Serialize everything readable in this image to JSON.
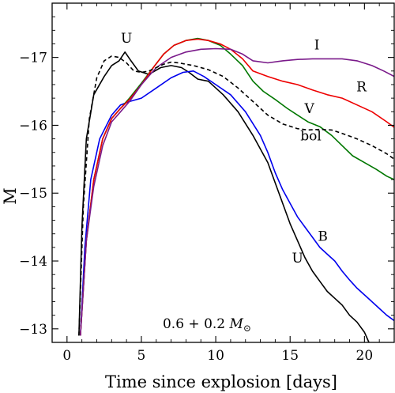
{
  "chart_data": {
    "type": "line",
    "xlabel": "Time since explosion [days]",
    "ylabel": "M",
    "xlim": [
      -1,
      22
    ],
    "ylim": [
      -12.8,
      -17.8
    ],
    "y_inverted": true,
    "x_ticks": [
      0,
      5,
      10,
      15,
      20
    ],
    "y_ticks": [
      -13,
      -14,
      -15,
      -16,
      -17
    ],
    "x_tick_labels": [
      "0",
      "5",
      "10",
      "15",
      "20"
    ],
    "y_tick_labels": [
      "−13",
      "−14",
      "−15",
      "−16",
      "−17"
    ],
    "annotation": "0.6 + 0.2 M⊙",
    "series": [
      {
        "name": "U",
        "color": "#000000",
        "dash": "solid",
        "x": [
          0.8,
          1.0,
          1.3,
          1.8,
          2.5,
          3.0,
          3.5,
          3.9,
          4.3,
          4.8,
          5.5,
          6.3,
          7.0,
          7.7,
          8.2,
          8.8,
          9.5,
          10.5,
          11.5,
          12.5,
          13.5,
          14.0,
          14.5,
          15.0,
          15.5,
          16.0,
          16.5,
          17.0,
          17.5,
          18.0,
          18.5,
          19.0,
          19.5,
          20.0,
          20.3
        ],
        "y": [
          -12.9,
          -14.5,
          -15.8,
          -16.45,
          -16.72,
          -16.88,
          -16.95,
          -17.08,
          -16.95,
          -16.8,
          -16.75,
          -16.85,
          -16.88,
          -16.85,
          -16.78,
          -16.68,
          -16.65,
          -16.45,
          -16.2,
          -15.85,
          -15.45,
          -15.15,
          -14.85,
          -14.55,
          -14.3,
          -14.05,
          -13.85,
          -13.7,
          -13.55,
          -13.45,
          -13.35,
          -13.2,
          -13.1,
          -12.95,
          -12.8
        ]
      },
      {
        "name": "B",
        "color": "#0000ee",
        "dash": "solid",
        "x": [
          0.9,
          1.2,
          1.6,
          2.2,
          3.0,
          3.6,
          4.2,
          5.0,
          6.0,
          7.0,
          7.8,
          8.5,
          9.2,
          10.0,
          11.0,
          12.0,
          13.0,
          13.5,
          14.0,
          14.5,
          15.0,
          15.5,
          16.0,
          16.5,
          17.0,
          17.5,
          18.0,
          18.5,
          19.0,
          19.5,
          20.0,
          20.5,
          21.0,
          21.5,
          22.0
        ],
        "y": [
          -12.9,
          -14.2,
          -15.2,
          -15.8,
          -16.15,
          -16.3,
          -16.35,
          -16.4,
          -16.55,
          -16.7,
          -16.78,
          -16.8,
          -16.72,
          -16.6,
          -16.45,
          -16.2,
          -15.85,
          -15.6,
          -15.3,
          -15.05,
          -14.85,
          -14.65,
          -14.5,
          -14.35,
          -14.2,
          -14.1,
          -14.0,
          -13.85,
          -13.72,
          -13.6,
          -13.5,
          -13.4,
          -13.3,
          -13.2,
          -13.12
        ]
      },
      {
        "name": "V",
        "color": "#007700",
        "dash": "solid",
        "x": [
          0.9,
          1.3,
          1.8,
          2.4,
          3.0,
          3.6,
          4.2,
          5.0,
          5.8,
          6.5,
          7.2,
          8.0,
          8.8,
          9.5,
          10.3,
          11.0,
          11.8,
          12.5,
          13.2,
          14.0,
          14.8,
          15.5,
          16.2,
          17.0,
          17.8,
          18.5,
          19.2,
          20.0,
          20.8,
          21.5,
          22.0
        ],
        "y": [
          -12.9,
          -14.3,
          -15.2,
          -15.8,
          -16.1,
          -16.25,
          -16.4,
          -16.62,
          -16.85,
          -17.05,
          -17.18,
          -17.25,
          -17.28,
          -17.25,
          -17.18,
          -17.05,
          -16.88,
          -16.65,
          -16.5,
          -16.38,
          -16.25,
          -16.15,
          -16.05,
          -15.98,
          -15.85,
          -15.7,
          -15.55,
          -15.45,
          -15.35,
          -15.25,
          -15.2
        ]
      },
      {
        "name": "R",
        "color": "#ee0000",
        "dash": "solid",
        "x": [
          0.9,
          1.3,
          1.8,
          2.4,
          3.0,
          3.6,
          4.2,
          5.0,
          5.8,
          6.5,
          7.2,
          8.0,
          8.8,
          9.5,
          10.3,
          11.0,
          11.8,
          12.5,
          13.5,
          14.5,
          15.5,
          16.5,
          17.5,
          18.5,
          19.5,
          20.5,
          21.5,
          22.0
        ],
        "y": [
          -12.9,
          -14.3,
          -15.2,
          -15.8,
          -16.1,
          -16.25,
          -16.38,
          -16.6,
          -16.85,
          -17.05,
          -17.18,
          -17.25,
          -17.27,
          -17.25,
          -17.2,
          -17.12,
          -16.98,
          -16.8,
          -16.72,
          -16.65,
          -16.6,
          -16.52,
          -16.45,
          -16.4,
          -16.3,
          -16.2,
          -16.05,
          -15.97
        ]
      },
      {
        "name": "I",
        "color": "#7a1a8a",
        "dash": "solid",
        "x": [
          0.9,
          1.3,
          1.8,
          2.4,
          3.0,
          3.6,
          4.2,
          5.0,
          6.0,
          7.0,
          8.0,
          9.0,
          10.0,
          11.0,
          11.8,
          12.5,
          13.5,
          14.5,
          15.5,
          16.5,
          17.5,
          18.5,
          19.5,
          20.5,
          21.3,
          22.0
        ],
        "y": [
          -12.9,
          -14.3,
          -15.1,
          -15.7,
          -16.05,
          -16.2,
          -16.35,
          -16.6,
          -16.85,
          -17.0,
          -17.08,
          -17.12,
          -17.13,
          -17.12,
          -17.05,
          -16.95,
          -16.92,
          -16.95,
          -16.97,
          -16.98,
          -16.98,
          -16.98,
          -16.95,
          -16.88,
          -16.8,
          -16.72
        ]
      },
      {
        "name": "bol",
        "color": "#000000",
        "dash": "dashed",
        "x": [
          0.8,
          1.1,
          1.5,
          2.0,
          2.5,
          3.0,
          3.5,
          4.0,
          4.5,
          5.0,
          5.5,
          6.0,
          6.5,
          7.0,
          7.5,
          8.5,
          9.5,
          10.5,
          11.5,
          12.5,
          13.5,
          14.5,
          15.5,
          16.2,
          17.0,
          17.8,
          18.5,
          19.5,
          20.5,
          21.5,
          22.0
        ],
        "y": [
          -12.9,
          -14.8,
          -16.1,
          -16.7,
          -16.95,
          -17.02,
          -17.0,
          -16.92,
          -16.8,
          -16.78,
          -16.8,
          -16.85,
          -16.9,
          -16.93,
          -16.92,
          -16.88,
          -16.82,
          -16.72,
          -16.55,
          -16.35,
          -16.15,
          -16.02,
          -15.95,
          -15.93,
          -15.94,
          -15.93,
          -15.88,
          -15.8,
          -15.7,
          -15.58,
          -15.5
        ]
      }
    ],
    "series_labels": [
      {
        "text": "U",
        "x": 4.0,
        "y": -17.22,
        "color": "#000000"
      },
      {
        "text": "I",
        "x": 16.8,
        "y": -17.12,
        "color": "#7a1a8a"
      },
      {
        "text": "R",
        "x": 19.8,
        "y": -16.5,
        "color": "#ee0000"
      },
      {
        "text": "V",
        "x": 16.3,
        "y": -16.18,
        "color": "#007700"
      },
      {
        "text": "bol",
        "x": 16.4,
        "y": -15.78,
        "color": "#000000"
      },
      {
        "text": "B",
        "x": 17.2,
        "y": -14.3,
        "color": "#0000ee"
      },
      {
        "text": "U",
        "x": 15.5,
        "y": -13.98,
        "color": "#000000"
      }
    ]
  }
}
